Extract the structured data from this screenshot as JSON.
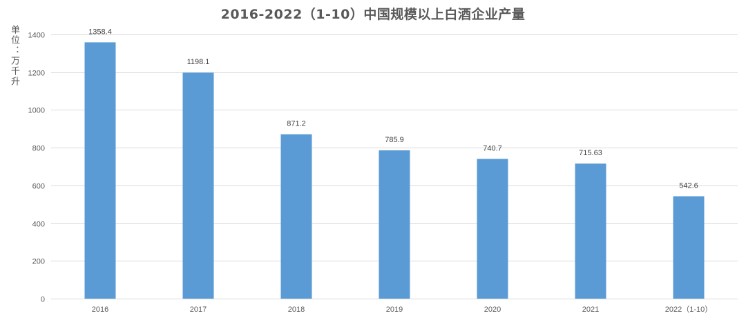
{
  "chart_data": {
    "type": "bar",
    "title": "2016-2022（1-10）中国规模以上白酒企业产量",
    "ylabel": "单位：万千升",
    "xlabel": "",
    "categories": [
      "2016",
      "2017",
      "2018",
      "2019",
      "2020",
      "2021",
      "2022（1-10）"
    ],
    "values": [
      1358.4,
      1198.1,
      871.2,
      785.9,
      740.7,
      715.63,
      542.6
    ],
    "data_labels": [
      "1358.4",
      "1198.1",
      "871.2",
      "785.9",
      "740.7",
      "715.63",
      "542.6"
    ],
    "ylim": [
      0,
      1400
    ],
    "yticks": [
      0,
      200,
      400,
      600,
      800,
      1000,
      1200,
      1400
    ],
    "grid": true,
    "legend": "none",
    "colors": {
      "bar": "#5b9bd5",
      "grid": "#d9d9d9",
      "text": "#595959"
    }
  }
}
